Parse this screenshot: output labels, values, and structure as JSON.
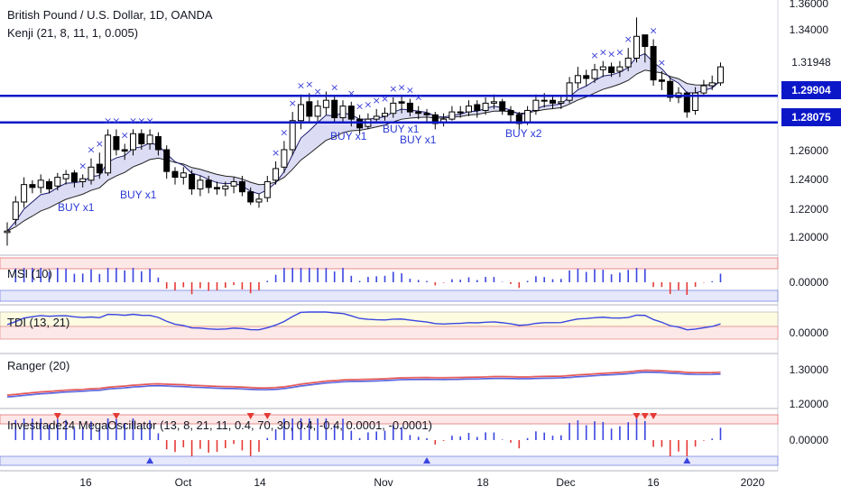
{
  "header": {
    "symbol_line": "British Pound / U.S. Dollar, 1D, OANDA",
    "indicator_line": "Kenji (21, 8, 11, 1, 0.005)"
  },
  "colors": {
    "up": "#ffffff",
    "down": "#000000",
    "level": "#0c18c8",
    "marker": "#3b3fd8",
    "band_fill": "#dcdcf4",
    "band_green": "#d8ecd8",
    "osc_up": "#3a45e0",
    "osc_down": "#e53935"
  },
  "price_axis": {
    "ticks": [
      "1.36000",
      "1.34000",
      "1.31948",
      "1.29904",
      "1.28075",
      "1.26000",
      "1.24000",
      "1.22000",
      "1.20000"
    ],
    "level_1": "1.29904",
    "level_2": "1.28075",
    "last": "1.31948"
  },
  "panes": {
    "msi": {
      "label": "MSI (10)",
      "tick": "0.00000"
    },
    "tdi": {
      "label": "TDI (13, 21)",
      "tick": "0.00000"
    },
    "ranger": {
      "label": "Ranger (20)",
      "ticks": [
        "1.30000",
        "1.20000"
      ]
    },
    "mega": {
      "label": "Investrade24 MegaOscillator (13, 8, 21, 11, 0.4, 70, 30, 0.4, -0.4, 0.0001, -0.0001)",
      "tick": "0.00000"
    }
  },
  "x_axis": {
    "ticks": [
      "16",
      "Oct",
      "14",
      "Nov",
      "18",
      "Dec",
      "16",
      "2020"
    ]
  },
  "signals": [
    "BUY x1",
    "BUY x1",
    "BUY x1",
    "BUY x1",
    "BUY x1",
    "BUY x2"
  ],
  "chart_data": {
    "type": "candlestick",
    "ylim": [
      1.19,
      1.365
    ],
    "levels": [
      1.29904,
      1.28075
    ],
    "close": [
      1.206,
      1.226,
      1.238,
      1.236,
      1.241,
      1.235,
      1.243,
      1.245,
      1.24,
      1.242,
      1.25,
      1.246,
      1.272,
      1.262,
      1.261,
      1.273,
      1.266,
      1.272,
      1.262,
      1.247,
      1.243,
      1.246,
      1.235,
      1.241,
      1.236,
      1.235,
      1.237,
      1.24,
      1.233,
      1.226,
      1.228,
      1.24,
      1.249,
      1.262,
      1.282,
      1.293,
      1.285,
      1.292,
      1.296,
      1.284,
      1.292,
      1.283,
      1.277,
      1.283,
      1.285,
      1.287,
      1.294,
      1.294,
      1.288,
      1.287,
      1.286,
      1.28,
      1.283,
      1.288,
      1.288,
      1.292,
      1.289,
      1.294,
      1.295,
      1.289,
      1.286,
      1.28,
      1.289,
      1.296,
      1.296,
      1.294,
      1.295,
      1.308,
      1.313,
      1.311,
      1.317,
      1.319,
      1.315,
      1.319,
      1.325,
      1.34,
      1.333,
      1.31,
      1.309,
      1.298,
      1.301,
      1.288,
      1.301,
      1.306,
      1.308,
      1.319
    ],
    "open": [
      1.205,
      1.214,
      1.226,
      1.238,
      1.236,
      1.24,
      1.237,
      1.242,
      1.246,
      1.24,
      1.241,
      1.252,
      1.246,
      1.271,
      1.262,
      1.262,
      1.273,
      1.266,
      1.271,
      1.262,
      1.247,
      1.243,
      1.245,
      1.235,
      1.241,
      1.236,
      1.235,
      1.237,
      1.24,
      1.233,
      1.226,
      1.229,
      1.241,
      1.25,
      1.262,
      1.282,
      1.295,
      1.285,
      1.291,
      1.296,
      1.284,
      1.292,
      1.283,
      1.278,
      1.283,
      1.285,
      1.287,
      1.295,
      1.294,
      1.288,
      1.287,
      1.286,
      1.281,
      1.283,
      1.288,
      1.288,
      1.293,
      1.289,
      1.294,
      1.295,
      1.289,
      1.286,
      1.281,
      1.289,
      1.296,
      1.296,
      1.294,
      1.296,
      1.308,
      1.313,
      1.311,
      1.317,
      1.319,
      1.316,
      1.319,
      1.325,
      1.341,
      1.333,
      1.31,
      1.309,
      1.298,
      1.301,
      1.289,
      1.301,
      1.306,
      1.308
    ],
    "high": [
      1.212,
      1.23,
      1.243,
      1.241,
      1.245,
      1.242,
      1.246,
      1.248,
      1.248,
      1.245,
      1.256,
      1.26,
      1.276,
      1.276,
      1.266,
      1.276,
      1.276,
      1.276,
      1.274,
      1.265,
      1.25,
      1.25,
      1.248,
      1.244,
      1.244,
      1.24,
      1.24,
      1.243,
      1.244,
      1.236,
      1.232,
      1.244,
      1.254,
      1.268,
      1.288,
      1.3,
      1.301,
      1.296,
      1.302,
      1.299,
      1.296,
      1.295,
      1.286,
      1.287,
      1.29,
      1.291,
      1.298,
      1.299,
      1.297,
      1.292,
      1.29,
      1.288,
      1.287,
      1.292,
      1.292,
      1.296,
      1.296,
      1.298,
      1.3,
      1.297,
      1.292,
      1.288,
      1.292,
      1.3,
      1.301,
      1.299,
      1.299,
      1.312,
      1.319,
      1.317,
      1.321,
      1.323,
      1.322,
      1.323,
      1.332,
      1.353,
      1.34,
      1.338,
      1.316,
      1.312,
      1.305,
      1.302,
      1.305,
      1.31,
      1.313,
      1.322
    ],
    "low": [
      1.196,
      1.21,
      1.222,
      1.232,
      1.232,
      1.232,
      1.234,
      1.238,
      1.236,
      1.236,
      1.238,
      1.242,
      1.244,
      1.258,
      1.255,
      1.258,
      1.262,
      1.262,
      1.258,
      1.242,
      1.238,
      1.238,
      1.231,
      1.23,
      1.232,
      1.231,
      1.23,
      1.232,
      1.23,
      1.224,
      1.222,
      1.226,
      1.238,
      1.246,
      1.258,
      1.276,
      1.28,
      1.281,
      1.286,
      1.281,
      1.28,
      1.278,
      1.273,
      1.276,
      1.28,
      1.282,
      1.284,
      1.287,
      1.285,
      1.283,
      1.281,
      1.276,
      1.278,
      1.282,
      1.284,
      1.285,
      1.284,
      1.286,
      1.29,
      1.286,
      1.28,
      1.276,
      1.279,
      1.286,
      1.291,
      1.29,
      1.29,
      1.294,
      1.304,
      1.306,
      1.308,
      1.312,
      1.312,
      1.312,
      1.316,
      1.322,
      1.322,
      1.306,
      1.303,
      1.295,
      1.294,
      1.284,
      1.286,
      1.299,
      1.303,
      1.306
    ]
  }
}
